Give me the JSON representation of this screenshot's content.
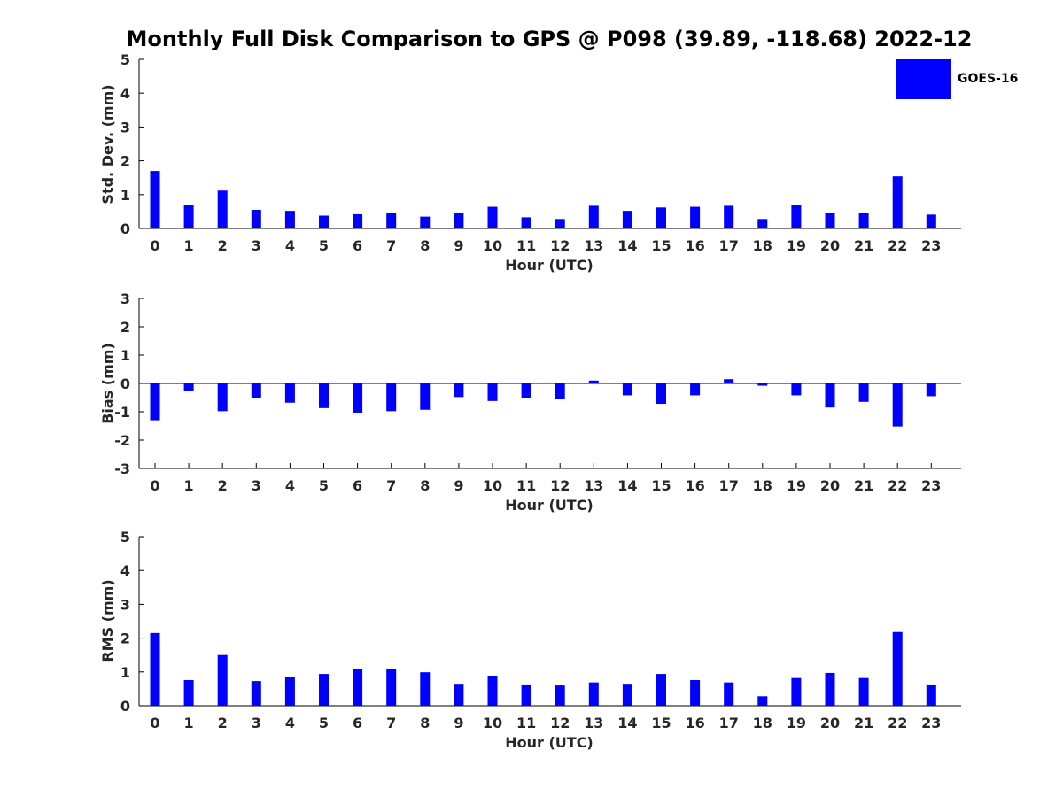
{
  "title": "Monthly Full Disk Comparison to GPS @ P098 (39.89, -118.68) 2022-12",
  "legend": {
    "label": "GOES-16",
    "color": "#0000ff",
    "placement": "top-right"
  },
  "chart_data": [
    {
      "type": "bar",
      "ylabel": "Std. Dev. (mm)",
      "xlabel": "Hour (UTC)",
      "ylim": [
        0,
        5
      ],
      "yticks": [
        0,
        1,
        2,
        3,
        4,
        5
      ],
      "categories": [
        0,
        1,
        2,
        3,
        4,
        5,
        6,
        7,
        8,
        9,
        10,
        11,
        12,
        13,
        14,
        15,
        16,
        17,
        18,
        19,
        20,
        21,
        22,
        23
      ],
      "values": [
        1.7,
        0.7,
        1.12,
        0.55,
        0.52,
        0.38,
        0.42,
        0.47,
        0.35,
        0.45,
        0.64,
        0.33,
        0.28,
        0.67,
        0.52,
        0.62,
        0.64,
        0.67,
        0.28,
        0.7,
        0.47,
        0.47,
        1.54,
        0.41
      ],
      "series_name": "GOES-16"
    },
    {
      "type": "bar",
      "ylabel": "Bias (mm)",
      "xlabel": "Hour (UTC)",
      "ylim": [
        -3,
        3
      ],
      "yticks": [
        -3,
        -2,
        -1,
        0,
        1,
        2,
        3
      ],
      "categories": [
        0,
        1,
        2,
        3,
        4,
        5,
        6,
        7,
        8,
        9,
        10,
        11,
        12,
        13,
        14,
        15,
        16,
        17,
        18,
        19,
        20,
        21,
        22,
        23
      ],
      "values": [
        -1.3,
        -0.28,
        -0.98,
        -0.5,
        -0.68,
        -0.87,
        -1.03,
        -0.98,
        -0.93,
        -0.48,
        -0.62,
        -0.5,
        -0.55,
        0.1,
        -0.42,
        -0.72,
        -0.42,
        0.15,
        -0.08,
        -0.42,
        -0.85,
        -0.65,
        -1.52,
        -0.45
      ],
      "series_name": "GOES-16"
    },
    {
      "type": "bar",
      "ylabel": "RMS (mm)",
      "xlabel": "Hour (UTC)",
      "ylim": [
        0,
        5
      ],
      "yticks": [
        0,
        1,
        2,
        3,
        4,
        5
      ],
      "categories": [
        0,
        1,
        2,
        3,
        4,
        5,
        6,
        7,
        8,
        9,
        10,
        11,
        12,
        13,
        14,
        15,
        16,
        17,
        18,
        19,
        20,
        21,
        22,
        23
      ],
      "values": [
        2.15,
        0.76,
        1.5,
        0.73,
        0.84,
        0.94,
        1.1,
        1.1,
        0.99,
        0.65,
        0.89,
        0.63,
        0.6,
        0.69,
        0.65,
        0.94,
        0.76,
        0.69,
        0.28,
        0.82,
        0.97,
        0.82,
        2.18,
        0.63
      ],
      "series_name": "GOES-16"
    }
  ]
}
